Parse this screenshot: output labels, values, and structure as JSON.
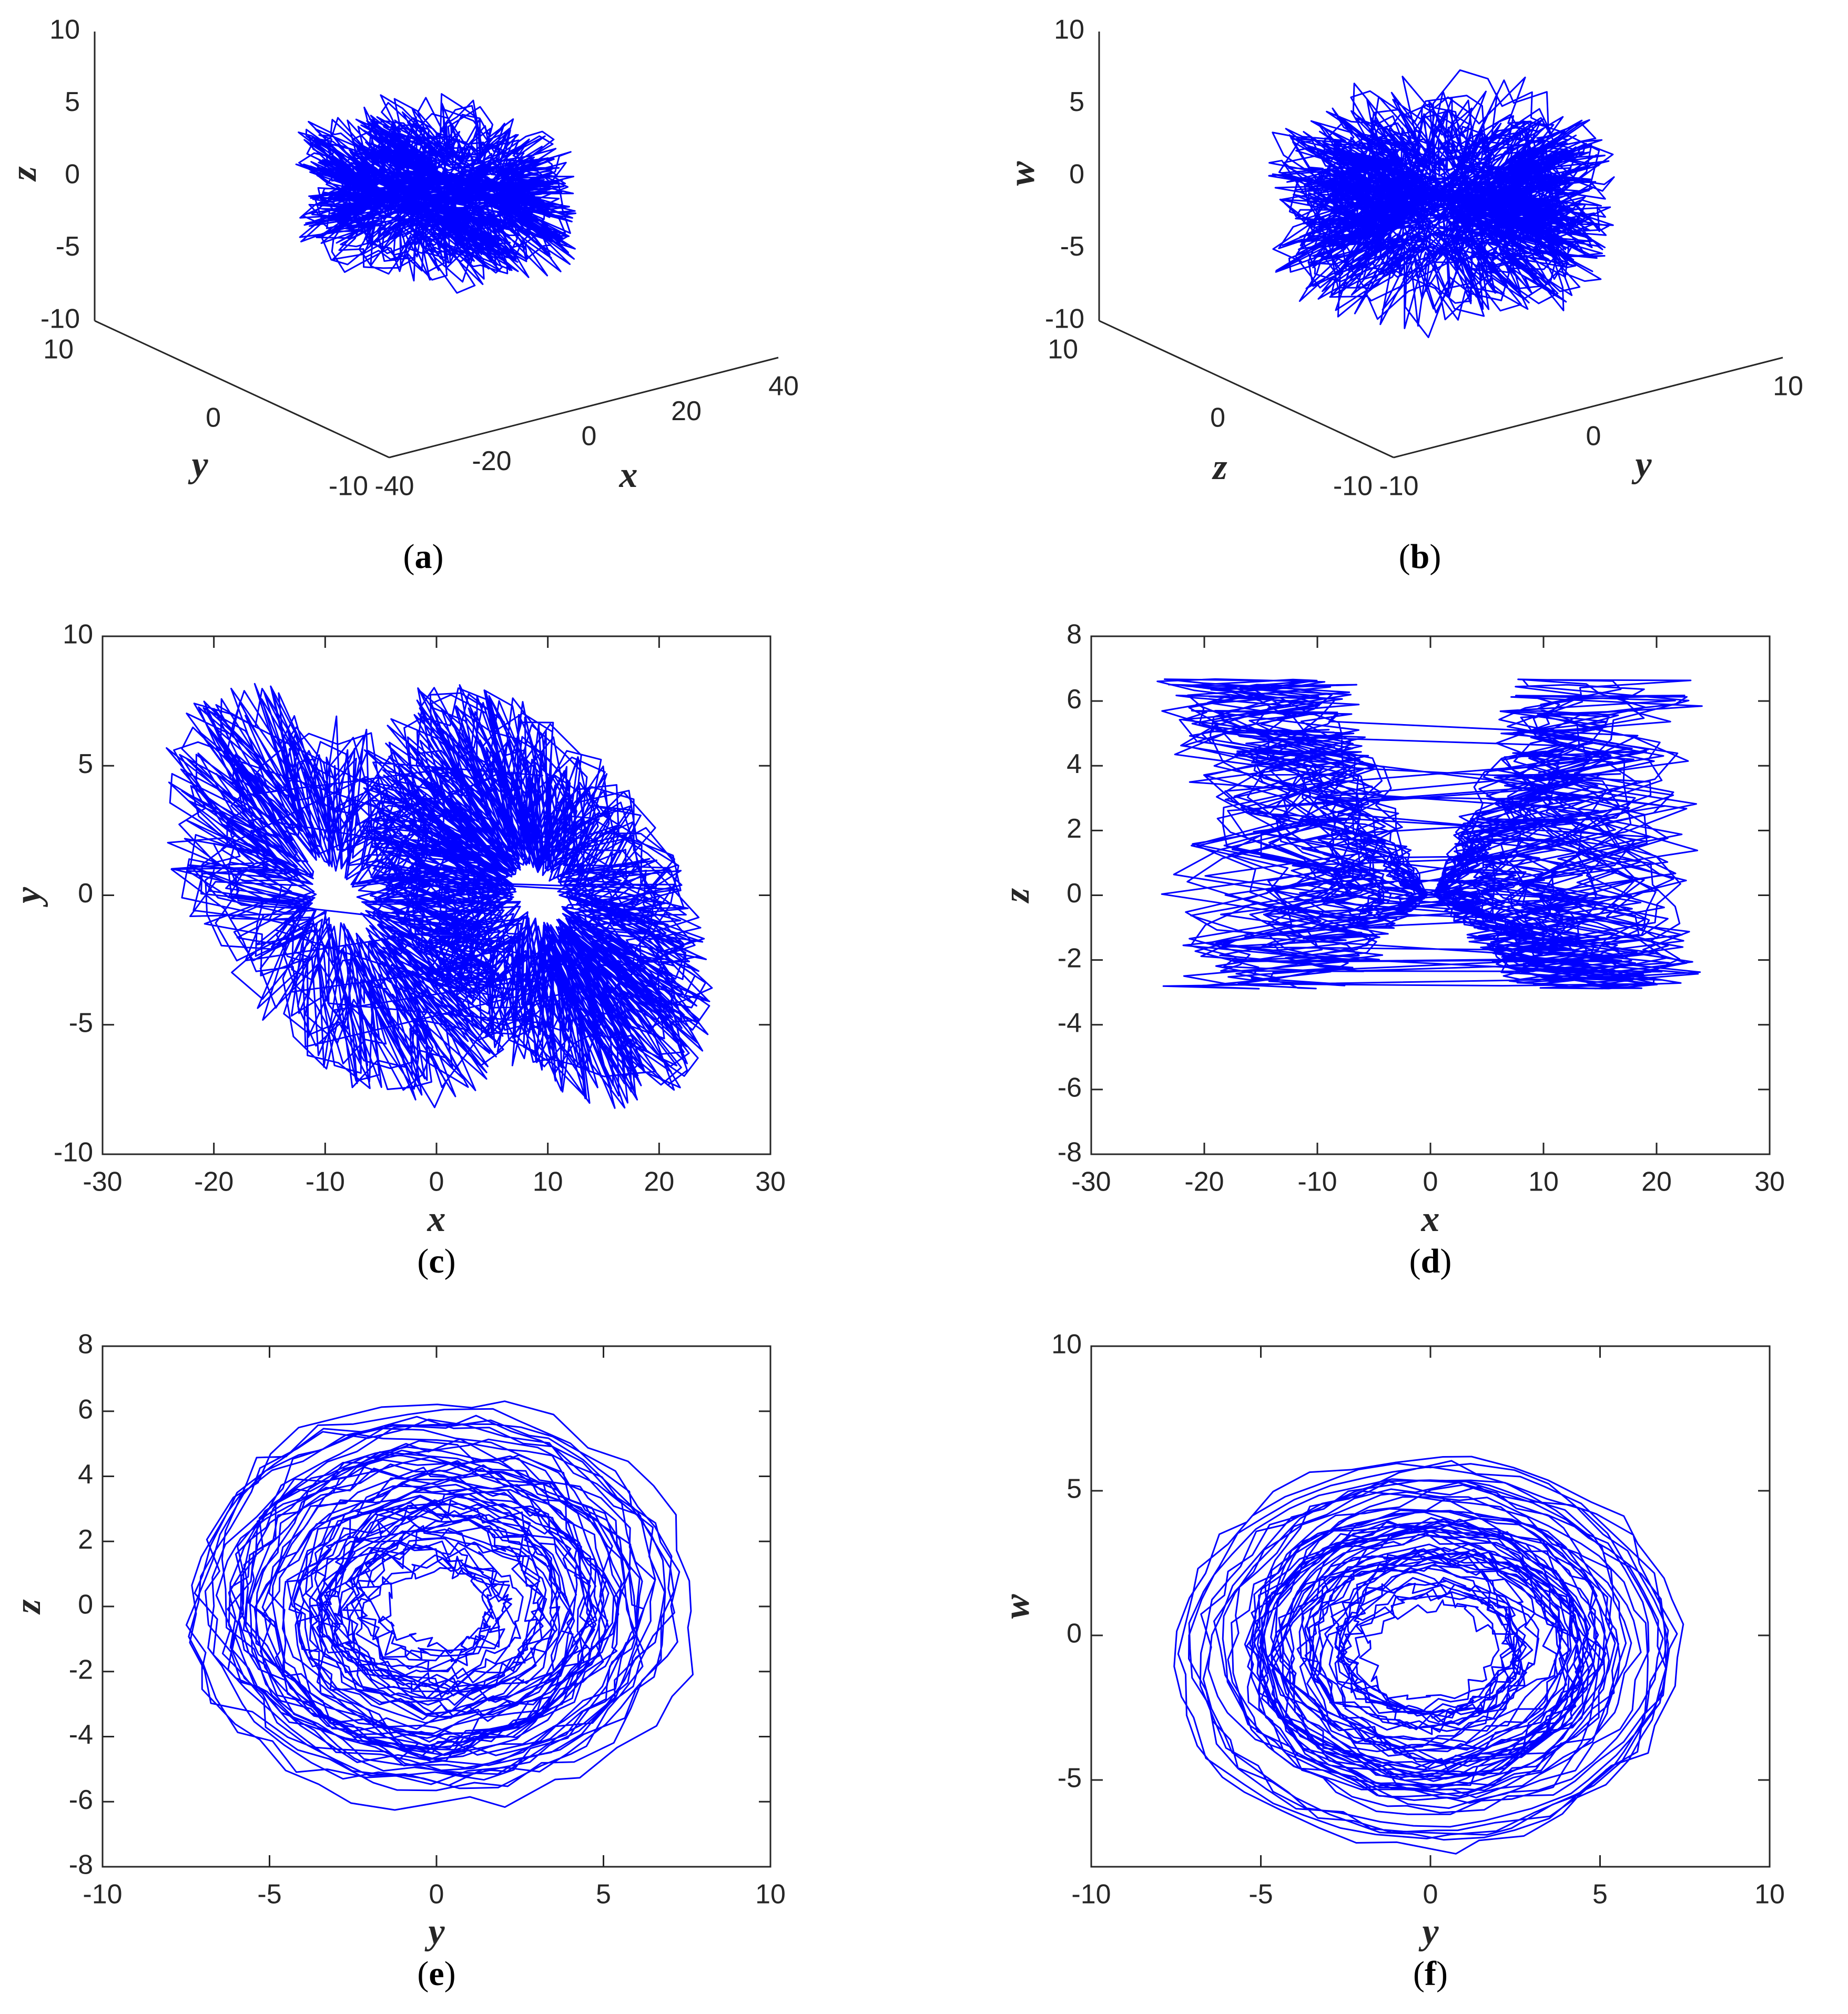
{
  "chart_data": [
    {
      "id": "a",
      "type": "line",
      "projection": "3d",
      "caption": "a",
      "series": [
        {
          "variables": [
            "x",
            "y",
            "z"
          ],
          "color": "#0000ff"
        }
      ],
      "axes": {
        "x": {
          "label": "x",
          "ticks": [
            "-40",
            "-20",
            "0",
            "20",
            "40"
          ],
          "range": [
            -40,
            40
          ]
        },
        "y": {
          "label": "y",
          "ticks": [
            "-10",
            "0",
            "10"
          ],
          "range": [
            -10,
            10
          ]
        },
        "z": {
          "label": "z",
          "ticks": [
            "-10",
            "-5",
            "0",
            "5",
            "10"
          ],
          "range": [
            -10,
            10
          ]
        }
      },
      "grid": false
    },
    {
      "id": "b",
      "type": "line",
      "projection": "3d",
      "caption": "b",
      "series": [
        {
          "variables": [
            "y",
            "z",
            "w"
          ],
          "color": "#0000ff"
        }
      ],
      "axes": {
        "y": {
          "label": "y",
          "ticks": [
            "-10",
            "0",
            "10"
          ],
          "range": [
            -10,
            10
          ]
        },
        "z": {
          "label": "z",
          "ticks": [
            "-10",
            "0",
            "10"
          ],
          "range": [
            -10,
            10
          ]
        },
        "w": {
          "label": "w",
          "ticks": [
            "-10",
            "-5",
            "0",
            "5",
            "10"
          ],
          "range": [
            -10,
            10
          ]
        }
      },
      "grid": false
    },
    {
      "id": "c",
      "type": "line",
      "projection": "2d",
      "caption": "c",
      "series": [
        {
          "variables": [
            "x",
            "y"
          ],
          "color": "#0000ff"
        }
      ],
      "axes": {
        "x": {
          "label": "x",
          "ticks": [
            "-30",
            "-20",
            "-10",
            "0",
            "10",
            "20",
            "30"
          ],
          "range": [
            -30,
            30
          ]
        },
        "y": {
          "label": "y",
          "ticks": [
            "-10",
            "-5",
            "0",
            "5",
            "10"
          ],
          "range": [
            -10,
            10
          ]
        }
      },
      "grid": false
    },
    {
      "id": "d",
      "type": "line",
      "projection": "2d",
      "caption": "d",
      "series": [
        {
          "variables": [
            "x",
            "z"
          ],
          "color": "#0000ff"
        }
      ],
      "axes": {
        "x": {
          "label": "x",
          "ticks": [
            "-30",
            "-20",
            "-10",
            "0",
            "10",
            "20",
            "30"
          ],
          "range": [
            -30,
            30
          ]
        },
        "y": {
          "label": "z",
          "ticks": [
            "-8",
            "-6",
            "-4",
            "-2",
            "0",
            "2",
            "4",
            "6",
            "8"
          ],
          "range": [
            -8,
            8
          ]
        }
      },
      "grid": false
    },
    {
      "id": "e",
      "type": "line",
      "projection": "2d",
      "caption": "e",
      "series": [
        {
          "variables": [
            "y",
            "z"
          ],
          "color": "#0000ff"
        }
      ],
      "axes": {
        "x": {
          "label": "y",
          "ticks": [
            "-10",
            "-5",
            "0",
            "5",
            "10"
          ],
          "range": [
            -10,
            10
          ]
        },
        "y": {
          "label": "z",
          "ticks": [
            "-8",
            "-6",
            "-4",
            "-2",
            "0",
            "2",
            "4",
            "6",
            "8"
          ],
          "range": [
            -8,
            8
          ]
        }
      },
      "grid": false
    },
    {
      "id": "f",
      "type": "line",
      "projection": "2d",
      "caption": "f",
      "series": [
        {
          "variables": [
            "y",
            "w"
          ],
          "color": "#0000ff"
        }
      ],
      "axes": {
        "x": {
          "label": "y",
          "ticks": [
            "-10",
            "-5",
            "0",
            "5",
            "10"
          ],
          "range": [
            -10,
            10
          ]
        },
        "y": {
          "label": "w",
          "ticks": [
            "-5",
            "0",
            "5",
            "10"
          ],
          "range": [
            -8,
            10
          ]
        }
      },
      "grid": false
    }
  ]
}
